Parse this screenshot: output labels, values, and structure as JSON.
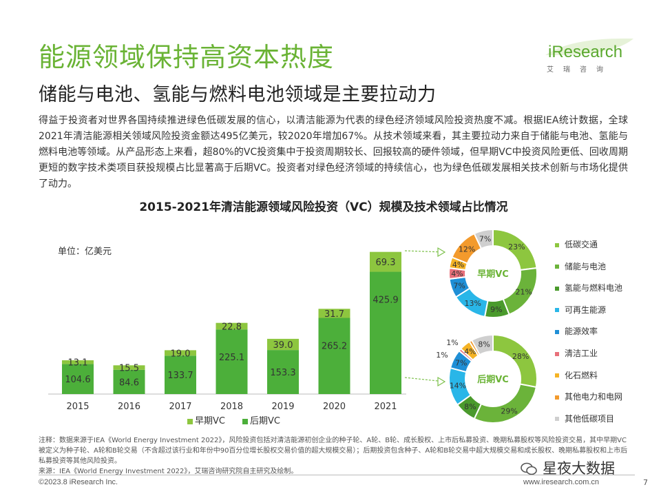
{
  "page": {
    "title": "能源领域保持高资本热度",
    "subtitle": "储能与电池、氢能与燃料电池领域是主要拉动力",
    "intro": "得益于投资者对世界各国持续推进绿色低碳发展的信心，以清洁能源为代表的绿色经济领域风险投资热度不减。根据IEA统计数据，全球2021年清洁能源相关领域风险投资金额达495亿美元，较2020年增加67%。从技术领域来看，其主要拉动力来自于储能与电池、氢能与燃料电池等领域。从产品形态上来看，超80%的VC投资集中于投资周期较长、回报较高的硬件领域，但早期VC中投资风险更低、回收周期更短的数字技术类项目获投规模占比显著高于后期VC。投资者对绿色经济领域的持续信心，也为绿色低碳发展相关技术创新与市场化提供了动力。",
    "logo_text": "iResearch",
    "logo_sub": "艾瑞咨询",
    "note": "注释：数据来源于IEA《World Energy Investment 2022》，风险投资包括对清洁能源初创企业的种子轮、A轮、B轮、成长股权、上市后私募投资、晚期私募股权等风险投资交易，其中早期VC被定义为种子轮、A轮和B轮交易（不含超过该行业和年份中90百分位增长股权交易价值的超大规模交易）；后期投资包含种子、A轮和B轮交易中超大规模交易和成长股权、晚期私募股权和上市后私募投资等其他风险投资。",
    "source": "来源：IEA《World Energy Investment 2022》，艾瑞咨询研究院自主研究及绘制。",
    "footer_left": "©2023.8 iResearch Inc.",
    "footer_right": "www.iresearch.com.cn",
    "page_number": "7",
    "watermark": "星夜大数据"
  },
  "chart_data": [
    {
      "type": "bar",
      "stacked": true,
      "title": "2015-2021年清洁能源领域风险投资（VC）规模及技术领域占比情况",
      "unit_label": "单位：亿美元",
      "categories": [
        "2015",
        "2016",
        "2017",
        "2018",
        "2019",
        "2020",
        "2021"
      ],
      "series": [
        {
          "name": "早期VC",
          "values": [
            13.1,
            15.5,
            19.0,
            22.8,
            39.0,
            31.7,
            69.3
          ],
          "color": "#8dc63f"
        },
        {
          "name": "后期VC",
          "values": [
            104.6,
            84.6,
            133.7,
            225.1,
            153.3,
            265.2,
            425.9
          ],
          "color": "#4caf3a"
        }
      ],
      "value_labels": {
        "早期VC": [
          "13.1",
          "15.5",
          "19.0",
          "22.8",
          "39.0",
          "31.7",
          "69.3"
        ],
        "后期VC": [
          "104.6",
          "84.6",
          "133.7",
          "225.1",
          "153.3",
          "265.2",
          "425.9"
        ]
      },
      "legend_position": "bottom"
    },
    {
      "type": "pie",
      "donut": true,
      "center_label": "早期VC",
      "categories": [
        "低碳交通",
        "储能与电池",
        "氢能与燃料电池",
        "可再生能源",
        "能源效率",
        "清洁工业",
        "化石燃料",
        "其他电力和电网",
        "其他低碳项目"
      ],
      "values": [
        23,
        21,
        9,
        13,
        7,
        4,
        4,
        12,
        7
      ],
      "labels": [
        "23%",
        "21%",
        "9%",
        "13%",
        "7%",
        "4%",
        "4%",
        "12%",
        "7%"
      ]
    },
    {
      "type": "pie",
      "donut": true,
      "center_label": "后期VC",
      "categories": [
        "低碳交通",
        "储能与电池",
        "氢能与燃料电池",
        "可再生能源",
        "能源效率",
        "清洁工业",
        "化石燃料",
        "其他电力和电网",
        "其他低碳项目"
      ],
      "values": [
        28,
        29,
        8,
        14,
        7,
        1,
        4,
        1,
        8
      ],
      "labels": [
        "28%",
        "29%",
        "8%",
        "14%",
        "7%",
        "1%",
        "4%",
        "1%",
        "8%"
      ]
    }
  ],
  "pie_legend": [
    {
      "label": "低碳交通",
      "color": "#8dc63f"
    },
    {
      "label": "储能与电池",
      "color": "#6bb33a"
    },
    {
      "label": "氢能与燃料电池",
      "color": "#4a9a2c"
    },
    {
      "label": "可再生能源",
      "color": "#29b6e8"
    },
    {
      "label": "能源效率",
      "color": "#1f8fd6"
    },
    {
      "label": "清洁工业",
      "color": "#e8707a"
    },
    {
      "label": "化石燃料",
      "color": "#f5b325"
    },
    {
      "label": "其他电力和电网",
      "color": "#f39a2c"
    },
    {
      "label": "其他低碳项目",
      "color": "#cfcfcf"
    }
  ]
}
